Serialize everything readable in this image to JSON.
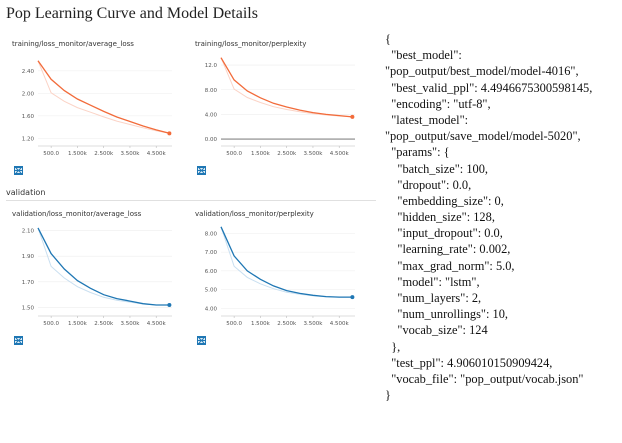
{
  "page": {
    "title": "Pop Learning Curve and Model Details",
    "section_validation": "validation"
  },
  "colors": {
    "training_line": "#f26b3a",
    "training_smooth": "#fbd3c6",
    "validation_line": "#1f77b4",
    "validation_smooth": "#c9dff0",
    "toolbar_icon": "#1f77b4",
    "axis": "#888888"
  },
  "toolbar_icons": [
    "expand-icon",
    "list-icon",
    "fit-domain-icon"
  ],
  "x_tick_labels": [
    "500.0",
    "1.500k",
    "2.500k",
    "3.500k",
    "4.500k"
  ],
  "chart_data": [
    {
      "type": "line",
      "title": "training/loss_monitor/average_loss",
      "x": [
        0,
        500,
        1000,
        1500,
        2000,
        2500,
        3000,
        3500,
        4000,
        4500,
        5000
      ],
      "series": [
        {
          "values": [
            2.58,
            2.25,
            2.05,
            1.9,
            1.79,
            1.68,
            1.58,
            1.5,
            1.42,
            1.35,
            1.29
          ]
        }
      ],
      "xticks": [
        500,
        1500,
        2500,
        3500,
        4500
      ],
      "yticks": [
        1.2,
        1.6,
        2.0,
        2.4
      ],
      "ytick_labels": [
        "1.20",
        "1.60",
        "2.00",
        "2.40"
      ],
      "xlim": [
        0,
        5100
      ],
      "ylim": [
        1.1,
        2.7
      ],
      "color": "#f26b3a",
      "smooth_color": "#fbd3c6"
    },
    {
      "type": "line",
      "title": "training/loss_monitor/perplexity",
      "x": [
        0,
        500,
        1000,
        1500,
        2000,
        2500,
        3000,
        3500,
        4000,
        4500,
        5000
      ],
      "series": [
        {
          "values": [
            13.2,
            9.6,
            7.8,
            6.7,
            5.8,
            5.2,
            4.7,
            4.3,
            4.0,
            3.8,
            3.6
          ]
        }
      ],
      "xticks": [
        500,
        1500,
        2500,
        3500,
        4500
      ],
      "yticks": [
        0,
        4,
        8,
        12
      ],
      "ytick_labels": [
        "0.00",
        "4.00",
        "8.00",
        "12.0"
      ],
      "xlim": [
        0,
        5100
      ],
      "ylim": [
        -0.8,
        13.8
      ],
      "color": "#f26b3a",
      "smooth_color": "#fbd3c6"
    },
    {
      "type": "line",
      "title": "validation/loss_monitor/average_loss",
      "x": [
        0,
        500,
        1000,
        1500,
        2000,
        2500,
        3000,
        3500,
        4000,
        4500,
        5000
      ],
      "series": [
        {
          "values": [
            2.12,
            1.92,
            1.8,
            1.71,
            1.65,
            1.6,
            1.57,
            1.55,
            1.53,
            1.52,
            1.52
          ]
        }
      ],
      "xticks": [
        500,
        1500,
        2500,
        3500,
        4500
      ],
      "yticks": [
        1.5,
        1.7,
        1.9,
        2.1
      ],
      "ytick_labels": [
        "1.50",
        "1.70",
        "1.90",
        "2.10"
      ],
      "xlim": [
        0,
        5100
      ],
      "ylim": [
        1.45,
        2.15
      ],
      "color": "#1f77b4",
      "smooth_color": "#c9dff0"
    },
    {
      "type": "line",
      "title": "validation/loss_monitor/perplexity",
      "x": [
        0,
        500,
        1000,
        1500,
        2000,
        2500,
        3000,
        3500,
        4000,
        4500,
        5000
      ],
      "series": [
        {
          "values": [
            8.35,
            6.8,
            6.0,
            5.55,
            5.2,
            4.95,
            4.8,
            4.7,
            4.63,
            4.6,
            4.6
          ]
        }
      ],
      "xticks": [
        500,
        1500,
        2500,
        3500,
        4500
      ],
      "yticks": [
        4,
        5,
        6,
        7,
        8
      ],
      "ytick_labels": [
        "4.00",
        "5.00",
        "6.00",
        "7.00",
        "8.00"
      ],
      "xlim": [
        0,
        5100
      ],
      "ylim": [
        3.7,
        8.5
      ],
      "color": "#1f77b4",
      "smooth_color": "#c9dff0"
    }
  ],
  "json_text": {
    "lines": [
      "{",
      "  \"best_model\":",
      "\"pop_output/best_model/model-4016\",",
      "  \"best_valid_ppl\": 4.4946675300598145,",
      "  \"encoding\": \"utf-8\",",
      "  \"latest_model\":",
      "\"pop_output/save_model/model-5020\",",
      "  \"params\": {",
      "    \"batch_size\": 100,",
      "    \"dropout\": 0.0,",
      "    \"embedding_size\": 0,",
      "    \"hidden_size\": 128,",
      "    \"input_dropout\": 0.0,",
      "    \"learning_rate\": 0.002,",
      "    \"max_grad_norm\": 5.0,",
      "    \"model\": \"lstm\",",
      "    \"num_layers\": 2,",
      "    \"num_unrollings\": 10,",
      "    \"vocab_size\": 124",
      "  },",
      "  \"test_ppl\": 4.906010150909424,",
      "  \"vocab_file\": \"pop_output/vocab.json\"",
      "}"
    ]
  }
}
